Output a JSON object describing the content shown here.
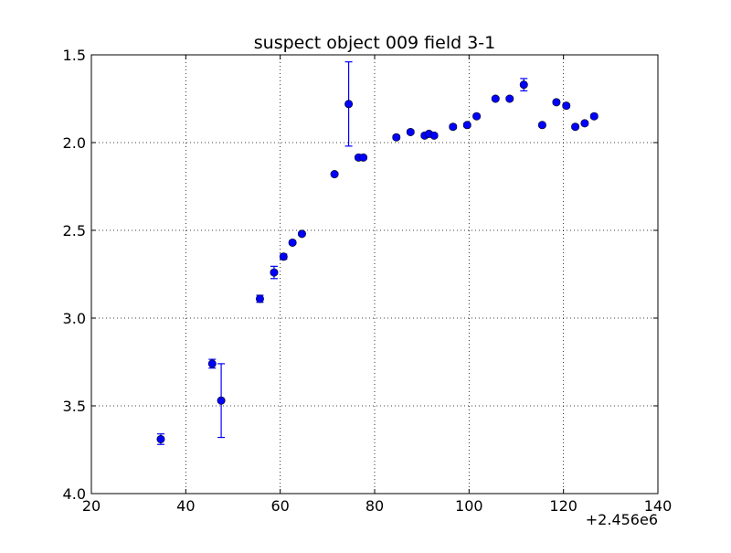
{
  "chart_data": {
    "type": "scatter",
    "title": "suspect object 009 field 3-1",
    "xlabel": "",
    "ylabel": "",
    "x_offset_label": "+2.456e6",
    "xlim": [
      20,
      140
    ],
    "ylim": [
      4.0,
      1.5
    ],
    "y_inverted": true,
    "grid": true,
    "x_ticks": [
      "20",
      "40",
      "60",
      "80",
      "100",
      "120",
      "140"
    ],
    "y_ticks": [
      "1.5",
      "2.0",
      "2.5",
      "3.0",
      "3.5",
      "4.0"
    ],
    "marker_color": "#0000ff",
    "series": [
      {
        "points": [
          {
            "x": 34.7,
            "y": 3.69,
            "err": 0.03
          },
          {
            "x": 45.6,
            "y": 3.26,
            "err": 0.025
          },
          {
            "x": 47.5,
            "y": 3.47,
            "err": 0.21
          },
          {
            "x": 55.7,
            "y": 2.89,
            "err": 0.02
          },
          {
            "x": 58.7,
            "y": 2.74,
            "err": 0.035
          },
          {
            "x": 60.7,
            "y": 2.65,
            "err": 0.015
          },
          {
            "x": 62.6,
            "y": 2.57,
            "err": 0.01
          },
          {
            "x": 64.6,
            "y": 2.52,
            "err": 0.01
          },
          {
            "x": 71.5,
            "y": 2.18,
            "err": 0.01
          },
          {
            "x": 74.5,
            "y": 1.78,
            "err": 0.24
          },
          {
            "x": 76.6,
            "y": 2.085,
            "err": 0.01
          },
          {
            "x": 77.6,
            "y": 2.085,
            "err": 0.01
          },
          {
            "x": 84.6,
            "y": 1.97,
            "err": 0.01
          },
          {
            "x": 87.6,
            "y": 1.94,
            "err": 0.01
          },
          {
            "x": 90.6,
            "y": 1.96,
            "err": 0.01
          },
          {
            "x": 91.5,
            "y": 1.95,
            "err": 0.01
          },
          {
            "x": 92.6,
            "y": 1.96,
            "err": 0.01
          },
          {
            "x": 96.6,
            "y": 1.91,
            "err": 0.01
          },
          {
            "x": 99.6,
            "y": 1.9,
            "err": 0.01
          },
          {
            "x": 101.6,
            "y": 1.85,
            "err": 0.01
          },
          {
            "x": 105.6,
            "y": 1.75,
            "err": 0.01
          },
          {
            "x": 108.6,
            "y": 1.75,
            "err": 0.01
          },
          {
            "x": 111.6,
            "y": 1.67,
            "err": 0.035
          },
          {
            "x": 115.5,
            "y": 1.9,
            "err": 0.01
          },
          {
            "x": 118.5,
            "y": 1.77,
            "err": 0.01
          },
          {
            "x": 120.6,
            "y": 1.79,
            "err": 0.01
          },
          {
            "x": 122.5,
            "y": 1.91,
            "err": 0.01
          },
          {
            "x": 124.5,
            "y": 1.89,
            "err": 0.01
          },
          {
            "x": 126.5,
            "y": 1.85,
            "err": 0.01
          }
        ]
      }
    ]
  }
}
